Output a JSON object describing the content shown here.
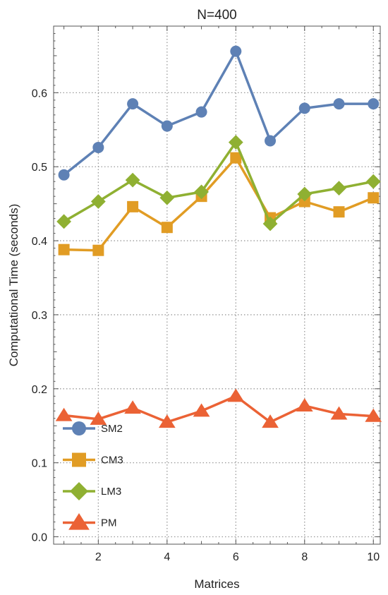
{
  "chart_data": {
    "type": "line",
    "title": "N=400",
    "xlabel": "Matrices",
    "ylabel": "Computational Time (seconds)",
    "xlim": [
      0.7,
      10.2
    ],
    "ylim": [
      -0.01,
      0.69
    ],
    "x_ticks": [
      2,
      4,
      6,
      8,
      10
    ],
    "y_ticks": [
      0.0,
      0.1,
      0.2,
      0.3,
      0.4,
      0.5,
      0.6
    ],
    "y_tick_labels": [
      "0.0",
      "0.1",
      "0.2",
      "0.3",
      "0.4",
      "0.5",
      "0.6"
    ],
    "grid": true,
    "legend_position": "bottom-left",
    "x": [
      1,
      2,
      3,
      4,
      5,
      6,
      7,
      8,
      9,
      10
    ],
    "series": [
      {
        "name": "SM2",
        "marker": "circle",
        "color": "#5e81b5",
        "values": [
          0.489,
          0.526,
          0.585,
          0.555,
          0.574,
          0.656,
          0.535,
          0.579,
          0.585,
          0.585
        ]
      },
      {
        "name": "CM3",
        "marker": "square",
        "color": "#e19c24",
        "values": [
          0.388,
          0.387,
          0.446,
          0.418,
          0.46,
          0.512,
          0.431,
          0.453,
          0.439,
          0.458
        ]
      },
      {
        "name": "LM3",
        "marker": "diamond",
        "color": "#8fb032",
        "values": [
          0.426,
          0.453,
          0.482,
          0.458,
          0.466,
          0.533,
          0.423,
          0.463,
          0.471,
          0.48
        ]
      },
      {
        "name": "PM",
        "marker": "triangle",
        "color": "#eb6235",
        "values": [
          0.164,
          0.159,
          0.174,
          0.155,
          0.17,
          0.19,
          0.155,
          0.177,
          0.166,
          0.163
        ]
      }
    ]
  }
}
